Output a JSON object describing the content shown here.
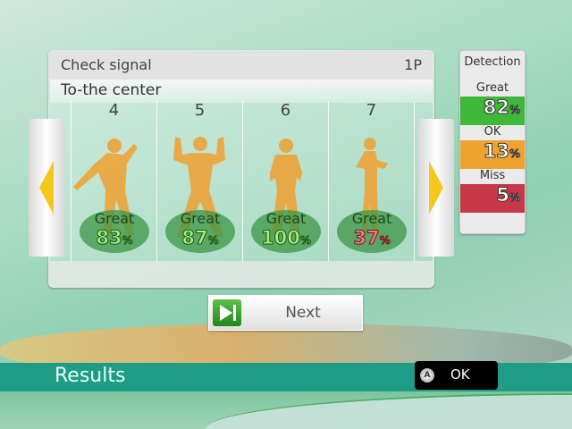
{
  "panel": {
    "title": "Check signal",
    "player": "1P",
    "subtitle": "To-the center"
  },
  "moves": [
    {
      "number": "4",
      "grade": "Great",
      "percent": "83",
      "unit": "%",
      "status": "good"
    },
    {
      "number": "5",
      "grade": "Great",
      "percent": "87",
      "unit": "%",
      "status": "good"
    },
    {
      "number": "6",
      "grade": "Great",
      "percent": "100",
      "unit": "%",
      "status": "good"
    },
    {
      "number": "7",
      "grade": "Great",
      "percent": "37",
      "unit": "%",
      "status": "bad"
    }
  ],
  "detection": {
    "title": "Detection",
    "items": [
      {
        "label": "Great",
        "percent": "82",
        "unit": "%",
        "color": "#3fb83a"
      },
      {
        "label": "OK",
        "percent": "13",
        "unit": "%",
        "color": "#f0a22e"
      },
      {
        "label": "Miss",
        "percent": "5",
        "unit": "%",
        "color": "#c8384a"
      }
    ]
  },
  "next_label": "Next",
  "footer": {
    "title": "Results",
    "ok_label": "OK",
    "ok_button_glyph": "A"
  },
  "colors": {
    "silhouette": "#f0a030",
    "band": "#1f9c86"
  }
}
